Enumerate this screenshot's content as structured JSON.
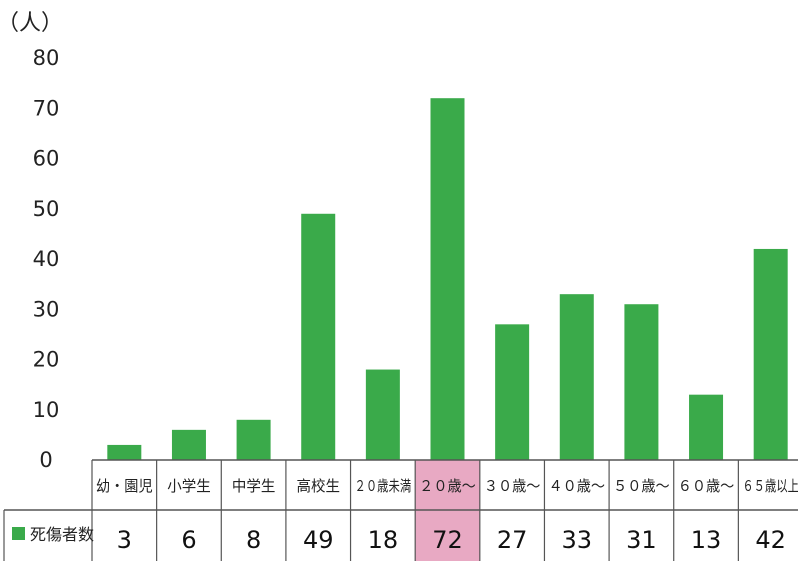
{
  "chart_data": {
    "type": "bar",
    "unit_label": "（人）",
    "categories": [
      "幼・園児",
      "小学生",
      "中学生",
      "高校生",
      "２０歳未満",
      "２０歳～",
      "３０歳～",
      "４０歳～",
      "５０歳～",
      "６０歳～",
      "６５歳以上"
    ],
    "series": [
      {
        "name": "死傷者数",
        "values": [
          3,
          6,
          8,
          49,
          18,
          72,
          27,
          33,
          31,
          13,
          42
        ]
      }
    ],
    "ylim": [
      0,
      80
    ],
    "yticks": [
      0,
      10,
      20,
      30,
      40,
      50,
      60,
      70,
      80
    ],
    "highlight_index": 5,
    "colors": {
      "bar": "#3aaa4a",
      "highlight_cell": "#e8a9c3",
      "grid_line": "#555555"
    }
  }
}
